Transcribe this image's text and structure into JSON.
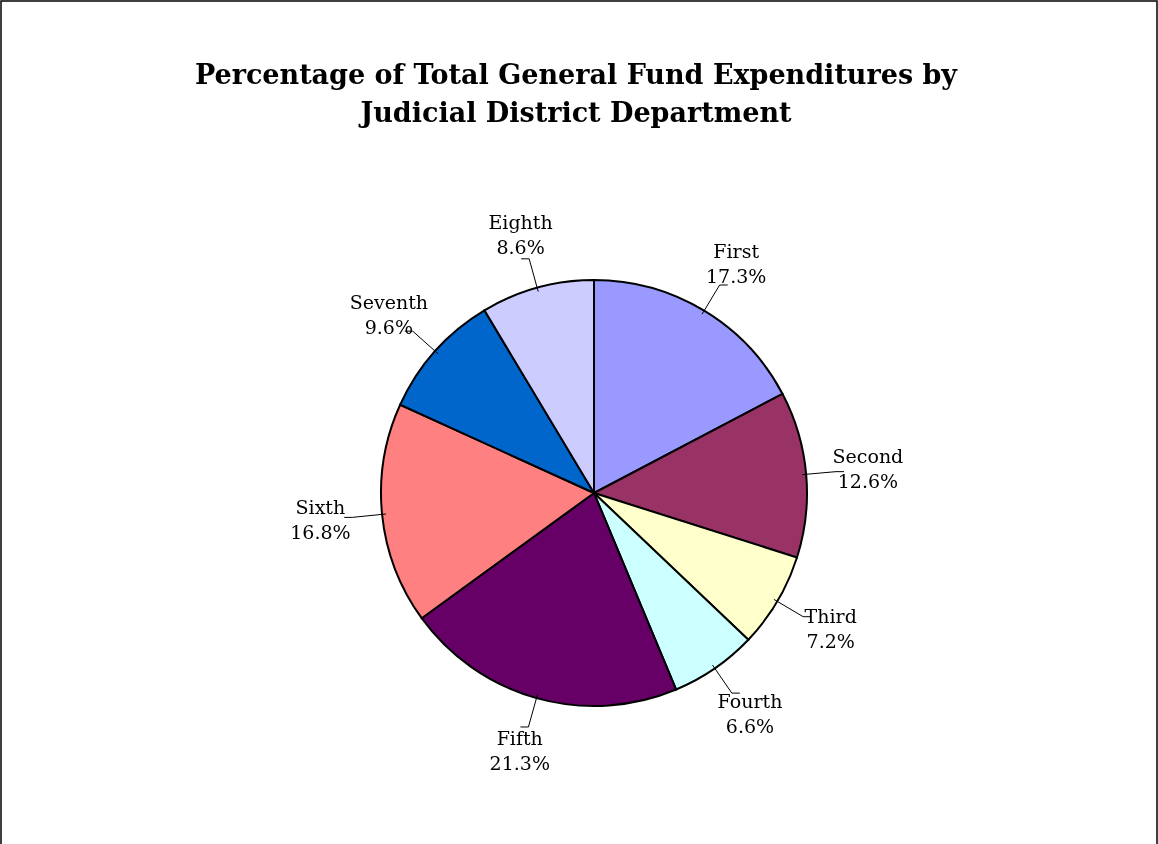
{
  "chart_data": {
    "type": "pie",
    "title": "Percentage of Total General Fund Expenditures by\nJudicial District Department",
    "categories": [
      "First",
      "Second",
      "Third",
      "Fourth",
      "Fifth",
      "Sixth",
      "Seventh",
      "Eighth"
    ],
    "values": [
      17.3,
      12.6,
      7.2,
      6.6,
      21.3,
      16.8,
      9.6,
      8.6
    ],
    "value_labels": [
      "17.3%",
      "12.6%",
      "7.2%",
      "6.6%",
      "21.3%",
      "16.8%",
      "9.6%",
      "8.6%"
    ],
    "colors": [
      "#9999ff",
      "#993366",
      "#ffffcc",
      "#ccffff",
      "#660066",
      "#ff8080",
      "#0066cc",
      "#ccccff"
    ]
  }
}
